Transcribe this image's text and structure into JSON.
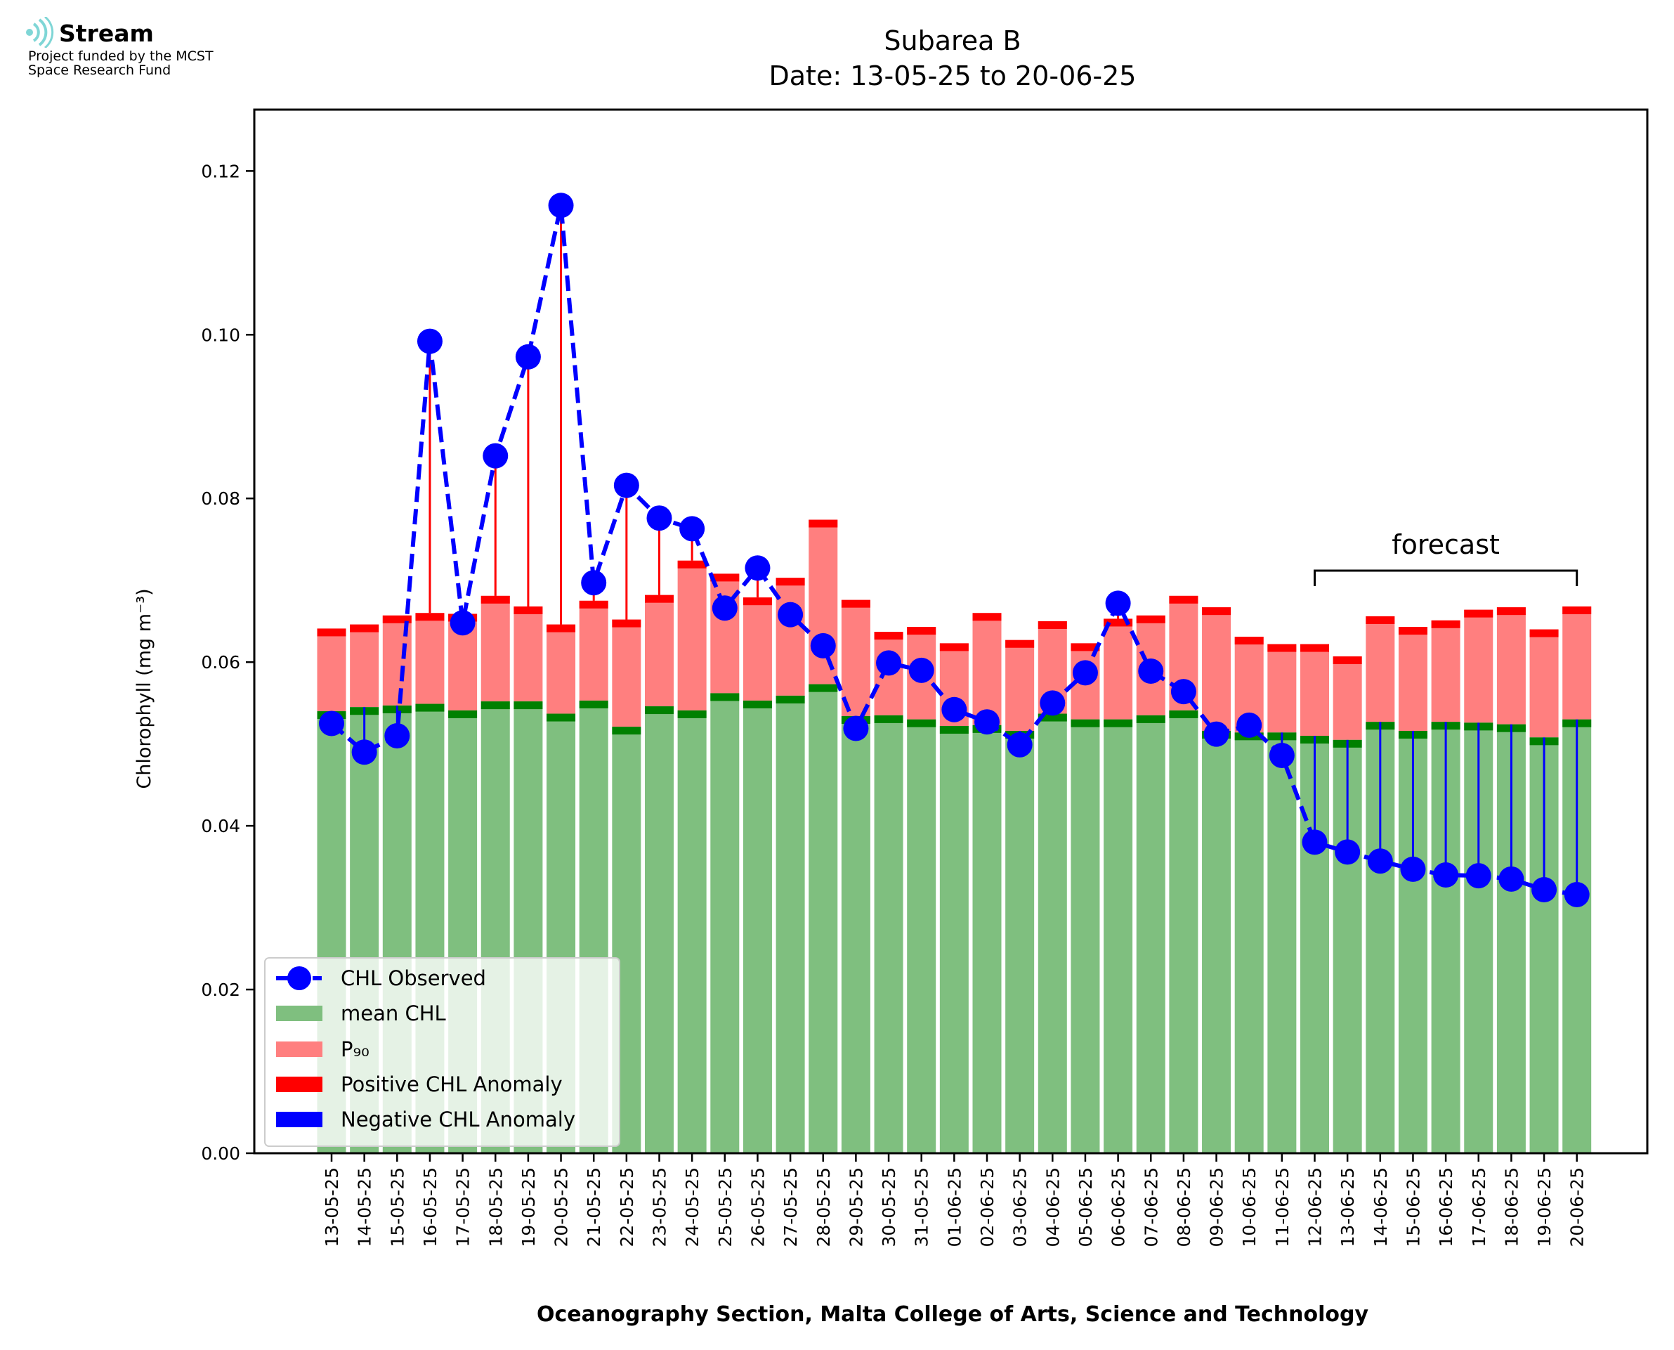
{
  "logo": {
    "name": "Stream",
    "funding_line1": "Project funded by the MCST",
    "funding_line2": "Space Research Fund"
  },
  "chart_data": {
    "type": "bar",
    "title": "Subarea B",
    "subtitle": "Date: 13-05-25 to 20-06-25",
    "xlabel": "Oceanography Section, Malta College of Arts, Science and Technology",
    "ylabel": "Chlorophyll (mg m⁻³)",
    "ylim": [
      0,
      0.1275
    ],
    "yticks": [
      "0.00",
      "0.02",
      "0.04",
      "0.06",
      "0.08",
      "0.10",
      "0.12"
    ],
    "grid": false,
    "legend_position": "lower-left",
    "annotation": "forecast",
    "forecast_start": "12-06-25",
    "forecast_end": "20-06-25",
    "categories": [
      "13-05-25",
      "14-05-25",
      "15-05-25",
      "16-05-25",
      "17-05-25",
      "18-05-25",
      "19-05-25",
      "20-05-25",
      "21-05-25",
      "22-05-25",
      "23-05-25",
      "24-05-25",
      "25-05-25",
      "26-05-25",
      "27-05-25",
      "28-05-25",
      "29-05-25",
      "30-05-25",
      "31-05-25",
      "01-06-25",
      "02-06-25",
      "03-06-25",
      "04-06-25",
      "05-06-25",
      "06-06-25",
      "07-06-25",
      "08-06-25",
      "09-06-25",
      "10-06-25",
      "11-06-25",
      "12-06-25",
      "13-06-25",
      "14-06-25",
      "15-06-25",
      "16-06-25",
      "17-06-25",
      "18-06-25",
      "19-06-25",
      "20-06-25"
    ],
    "series": [
      {
        "name": "CHL Observed",
        "type": "line",
        "color": "#0000ff",
        "values": [
          0.0525,
          0.049,
          0.051,
          0.0992,
          0.0648,
          0.0852,
          0.0973,
          0.1158,
          0.0697,
          0.0816,
          0.0776,
          0.0763,
          0.0666,
          0.0715,
          0.0658,
          0.062,
          0.0519,
          0.0599,
          0.059,
          0.0542,
          0.0527,
          0.0499,
          0.055,
          0.0587,
          0.0672,
          0.0589,
          0.0564,
          0.0512,
          0.0523,
          0.0486,
          0.038,
          0.0368,
          0.0357,
          0.0347,
          0.034,
          0.0339,
          0.0335,
          0.0322,
          0.0316
        ]
      },
      {
        "name": "mean CHL",
        "type": "bar",
        "color": "#7fbf7f",
        "values": [
          0.054,
          0.0545,
          0.0547,
          0.0549,
          0.0541,
          0.0552,
          0.0552,
          0.0537,
          0.0553,
          0.0521,
          0.0546,
          0.0541,
          0.0562,
          0.0553,
          0.0559,
          0.0573,
          0.0534,
          0.0535,
          0.053,
          0.0522,
          0.0523,
          0.0516,
          0.0537,
          0.053,
          0.053,
          0.0535,
          0.0541,
          0.0516,
          0.0514,
          0.0514,
          0.051,
          0.0505,
          0.0527,
          0.0516,
          0.0527,
          0.0526,
          0.0524,
          0.0508,
          0.053
        ]
      },
      {
        "name": "P₉₀",
        "type": "bar",
        "color": "#ff7f7f",
        "values": [
          0.0641,
          0.0646,
          0.0657,
          0.066,
          0.0659,
          0.0681,
          0.0668,
          0.0646,
          0.0675,
          0.0652,
          0.0682,
          0.0724,
          0.0708,
          0.0679,
          0.0703,
          0.0774,
          0.0676,
          0.0637,
          0.0643,
          0.0623,
          0.066,
          0.0627,
          0.065,
          0.0623,
          0.0653,
          0.0657,
          0.0681,
          0.0667,
          0.0631,
          0.0622,
          0.0622,
          0.0607,
          0.0656,
          0.0643,
          0.0651,
          0.0664,
          0.0667,
          0.064,
          0.0668
        ]
      },
      {
        "name": "Positive CHL Anomaly",
        "type": "marker",
        "color": "#ff0000"
      },
      {
        "name": "Negative CHL Anomaly",
        "type": "marker",
        "color": "#0000ff"
      }
    ],
    "colors": {
      "observed": "#0000ff",
      "mean_fill": "#7fbf7f",
      "mean_cap": "#008000",
      "p90_fill": "#ff7f7f",
      "p90_cap": "#ff0000",
      "negative": "#0000ff"
    }
  }
}
